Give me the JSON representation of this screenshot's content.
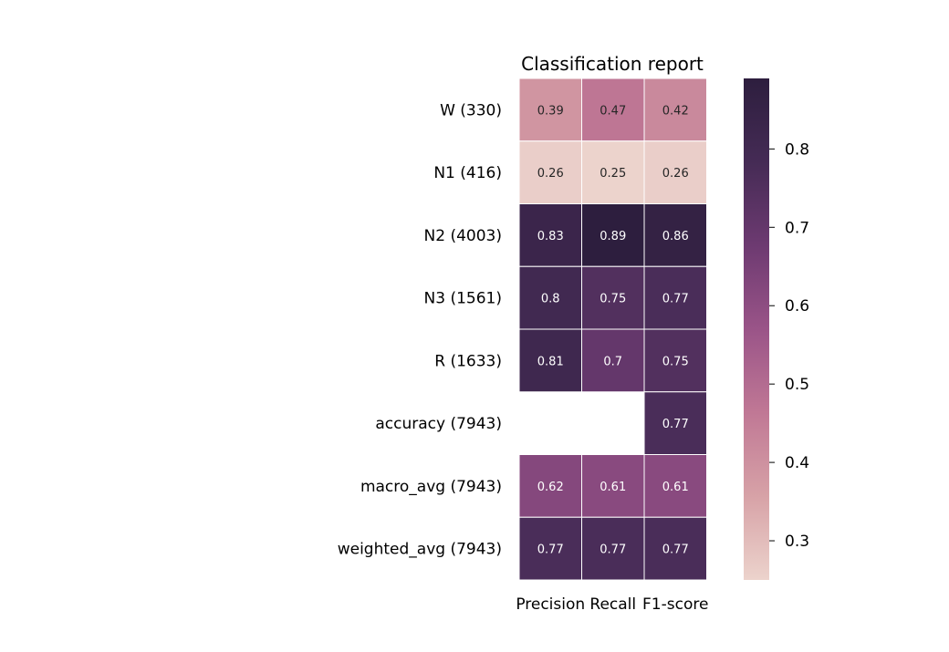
{
  "chart_data": {
    "type": "heatmap",
    "title": "Classification report",
    "columns": [
      "Precision",
      "Recall",
      "F1-score"
    ],
    "rows": [
      "W (330)",
      "N1 (416)",
      "N2 (4003)",
      "N3 (1561)",
      "R (1633)",
      "accuracy (7943)",
      "macro_avg (7943)",
      "weighted_avg (7943)"
    ],
    "values": [
      [
        0.39,
        0.47,
        0.42
      ],
      [
        0.26,
        0.25,
        0.26
      ],
      [
        0.83,
        0.89,
        0.86
      ],
      [
        0.8,
        0.75,
        0.77
      ],
      [
        0.81,
        0.7,
        0.75
      ],
      [
        null,
        null,
        0.77
      ],
      [
        0.62,
        0.61,
        0.61
      ],
      [
        0.77,
        0.77,
        0.77
      ]
    ],
    "colorbar": {
      "range": [
        0.25,
        0.89
      ],
      "ticks": [
        "0.3",
        "0.4",
        "0.5",
        "0.6",
        "0.7",
        "0.8"
      ]
    },
    "colormap": [
      "#ecd3cc",
      "#d7a2a7",
      "#c07895",
      "#9a5488",
      "#6d3a71",
      "#452b55",
      "#2d1e3e"
    ],
    "annotation_colors": {
      "light_cell": "#262626",
      "dark_cell": "#ffffff"
    },
    "cell_border": "#ffffff"
  }
}
